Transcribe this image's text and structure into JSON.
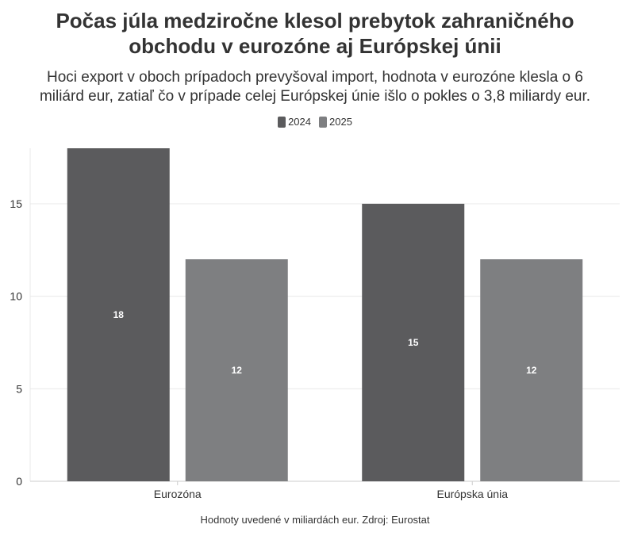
{
  "title_line1": "Počas júla medziročne klesol prebytok zahraničného",
  "title_line2": "obchodu v eurozóne aj Európskej únii",
  "subtitle_line1": "Hoci export v oboch prípadoch prevyšoval import, hodnota v eurozóne klesla o 6",
  "subtitle_line2": "miliárd eur, zatiaľ čo v prípade celej Európskej únie išlo o pokles o 3,8 miliardy eur.",
  "footer": "Hodnoty uvedené v miliardách eur. Zdroj: Eurostat",
  "colors": {
    "s2024": "#5b5b5d",
    "s2025": "#7e7f81",
    "grid": "#e8e8e8",
    "axis": "#cccccc"
  },
  "chart_data": {
    "type": "bar",
    "categories": [
      "Eurozóna",
      "Európska únia"
    ],
    "series": [
      {
        "name": "2024",
        "values": [
          18,
          15
        ]
      },
      {
        "name": "2025",
        "values": [
          12,
          12
        ]
      }
    ],
    "ylim": [
      0,
      18
    ],
    "yticks": [
      0,
      5,
      10,
      15
    ],
    "grid": true,
    "legend": "top-center",
    "data_labels": true
  }
}
